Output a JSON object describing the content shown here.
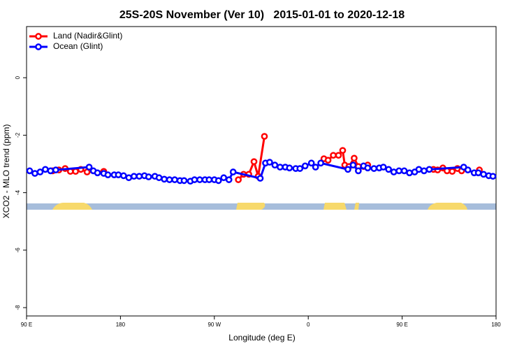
{
  "chart_data": {
    "type": "line",
    "title": "25S-20S November (Ver 10)   2015-01-01 to 2020-12-18",
    "x_label": "Longitude (deg E)",
    "y_label": "XCO2 - MLO trend (ppm)",
    "xlim": [
      -270,
      180
    ],
    "ylim": [
      -8.29,
      1.78
    ],
    "xticks": [
      {
        "value": -270,
        "label": "90 E"
      },
      {
        "value": -180,
        "label": "180"
      },
      {
        "value": -90,
        "label": "90 W"
      },
      0,
      {
        "value": 90,
        "label": "90 E"
      },
      {
        "value": 180,
        "label": "180"
      }
    ],
    "yticks": [
      0,
      -2,
      -4,
      -6,
      -8
    ],
    "legend": "top-left",
    "series": [
      {
        "name": "Land (Nadir&Glint)",
        "color": "#ff0000",
        "x": [
          -245,
          -239,
          -233,
          -228,
          -223,
          -218,
          -212,
          -196,
          null,
          -67,
          -62,
          -57,
          -52,
          -48,
          -42,
          null,
          15,
          19,
          24,
          29,
          33,
          35,
          39,
          44,
          48,
          53,
          57,
          null,
          120,
          124,
          129,
          133,
          138,
          143,
          147,
          null,
          164
        ],
        "values": [
          -3.24,
          -3.21,
          -3.16,
          -3.26,
          -3.26,
          -3.19,
          -3.28,
          -3.26,
          null,
          -3.55,
          -3.36,
          -3.36,
          -2.92,
          -3.43,
          -2.04,
          null,
          -2.82,
          -2.87,
          -2.7,
          -2.7,
          -2.53,
          -3.04,
          -3.09,
          -2.8,
          -3.09,
          -3.09,
          -3.04,
          null,
          -3.19,
          -3.21,
          -3.14,
          -3.24,
          -3.26,
          -3.16,
          -3.24,
          null,
          -3.21
        ]
      },
      {
        "name": "Ocean (Glint)",
        "color": "#0000ff",
        "x": [
          -267,
          -262,
          -257,
          -252,
          -247,
          -242,
          -210,
          -206,
          -202,
          -196,
          -192,
          -186,
          -182,
          -177,
          -172,
          -167,
          -162,
          -157,
          -153,
          -147,
          -143,
          -138,
          -133,
          -128,
          -123,
          -119,
          -113,
          -109,
          -104,
          -99,
          -95,
          -90,
          -86,
          -81,
          -76,
          -72,
          -46,
          -41,
          -37,
          -32,
          -27,
          -22,
          -18,
          -12,
          -8,
          -3,
          3,
          7,
          12,
          38,
          43,
          48,
          53,
          57,
          63,
          68,
          72,
          77,
          82,
          87,
          92,
          97,
          102,
          106,
          111,
          116,
          149,
          153,
          159,
          163,
          168,
          173,
          177
        ],
        "values": [
          -3.24,
          -3.33,
          -3.28,
          -3.19,
          -3.24,
          -3.21,
          -3.11,
          -3.24,
          -3.31,
          -3.33,
          -3.38,
          -3.38,
          -3.38,
          -3.41,
          -3.48,
          -3.43,
          -3.43,
          -3.41,
          -3.45,
          -3.43,
          -3.48,
          -3.53,
          -3.55,
          -3.55,
          -3.58,
          -3.58,
          -3.6,
          -3.55,
          -3.55,
          -3.55,
          -3.55,
          -3.55,
          -3.58,
          -3.48,
          -3.55,
          -3.28,
          -3.5,
          -2.97,
          -2.94,
          -3.04,
          -3.11,
          -3.11,
          -3.14,
          -3.16,
          -3.16,
          -3.07,
          -2.97,
          -3.11,
          -2.97,
          -3.19,
          -3.04,
          -3.24,
          -3.07,
          -3.14,
          -3.16,
          -3.14,
          -3.11,
          -3.19,
          -3.28,
          -3.24,
          -3.24,
          -3.31,
          -3.28,
          -3.19,
          -3.24,
          -3.19,
          -3.11,
          -3.21,
          -3.31,
          -3.31,
          -3.36,
          -3.41,
          -3.43
        ]
      }
    ]
  }
}
